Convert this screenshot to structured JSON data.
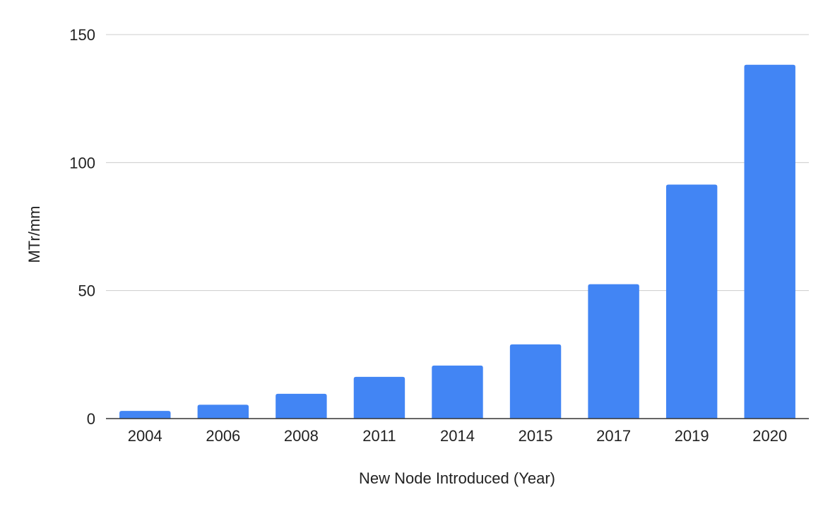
{
  "chart_data": {
    "type": "bar",
    "title": "",
    "xlabel": "New Node Introduced (Year)",
    "ylabel": "MTr/mm",
    "categories": [
      "2004",
      "2006",
      "2008",
      "2011",
      "2014",
      "2015",
      "2017",
      "2019",
      "2020"
    ],
    "values": [
      3,
      5.4,
      9.7,
      16.3,
      20.7,
      29,
      52.5,
      91.4,
      138.2
    ],
    "ylim": [
      0,
      150
    ],
    "yticks": [
      0,
      50,
      100,
      150
    ],
    "ytick_labels": [
      "0",
      "50",
      "100",
      "150"
    ],
    "grid": true,
    "legend": "none",
    "colors": {
      "bar": "#4285f4",
      "grid": "#cccccc",
      "axis": "#333333",
      "text": "#222222"
    }
  }
}
